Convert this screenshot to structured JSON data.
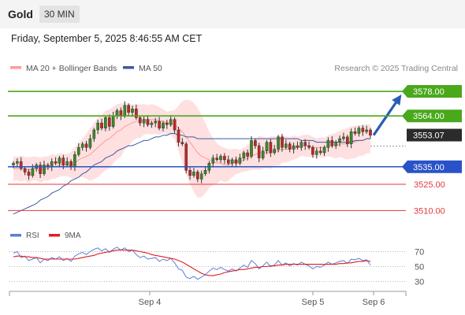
{
  "header": {
    "title": "Gold",
    "timeframe": "30 MIN"
  },
  "datetime": "Friday, September 5, 2025 8:46:55 AM CET",
  "legend": {
    "item1": "MA 20 + Bollinger Bands",
    "item2": "MA 50"
  },
  "credit": "Research © 2025 Trading Central",
  "rsi_legend": {
    "item1": "RSI",
    "item2": "9MA"
  },
  "colors": {
    "resistance": "#4aa81c",
    "support": "#2952c8",
    "weak": "#e03a3a",
    "up": "#3b8a25",
    "down": "#c02828",
    "band": "#ffd6d6",
    "ma20": "#ff9a9a",
    "ma50": "#3c5aa6",
    "arrow": "#2a5bb5",
    "rsi": "#5b7fd6",
    "rsi_ma": "#e02020"
  },
  "chart_data": [
    {
      "type": "candlestick",
      "title": "Gold",
      "xlabel": "",
      "ylabel": "",
      "ylim": [
        3503,
        3587
      ],
      "x_ticks": [
        "Sep 4",
        "Sep 5",
        "Sep 6"
      ],
      "levels": [
        {
          "value": 3578.0,
          "label": "3578.00",
          "kind": "resistance"
        },
        {
          "value": 3564.0,
          "label": "3564.00",
          "kind": "resistance"
        },
        {
          "value": 3553.07,
          "label": "3553.07",
          "kind": "last"
        },
        {
          "value": 3535.0,
          "label": "3535.00",
          "kind": "support"
        },
        {
          "value": 3525.0,
          "label": "3525.00",
          "kind": "weak"
        },
        {
          "value": 3510.0,
          "label": "3510.00",
          "kind": "weak"
        }
      ],
      "forecast": {
        "from": 3553,
        "to": 3574
      },
      "series": [
        {
          "name": "Price",
          "close": [
            3537,
            3538,
            3534,
            3532,
            3530,
            3534,
            3536,
            3531,
            3536,
            3535,
            3538,
            3537,
            3540,
            3536,
            3538,
            3535,
            3542,
            3546,
            3548,
            3546,
            3551,
            3556,
            3560,
            3557,
            3563,
            3558,
            3564,
            3567,
            3564,
            3570,
            3566,
            3568,
            3563,
            3560,
            3562,
            3559,
            3560,
            3561,
            3557,
            3560,
            3559,
            3562,
            3556,
            3549,
            3548,
            3533,
            3530,
            3532,
            3528,
            3531,
            3533,
            3537,
            3540,
            3539,
            3541,
            3539,
            3537,
            3539,
            3537,
            3540,
            3543,
            3541,
            3550,
            3547,
            3540,
            3544,
            3549,
            3543,
            3545,
            3552,
            3546,
            3548,
            3545,
            3547,
            3546,
            3549,
            3547,
            3546,
            3542,
            3544,
            3543,
            3546,
            3550,
            3547,
            3549,
            3551,
            3552,
            3548,
            3555,
            3554,
            3557,
            3555,
            3556,
            3553
          ]
        },
        {
          "name": "MA 20",
          "values": [
            3534,
            3534,
            3534,
            3534,
            3533,
            3534,
            3534,
            3533,
            3534,
            3534,
            3535,
            3535,
            3536,
            3536,
            3536,
            3536,
            3537,
            3539,
            3540,
            3541,
            3542,
            3544,
            3546,
            3548,
            3550,
            3551,
            3553,
            3555,
            3556,
            3558,
            3559,
            3560,
            3561,
            3561,
            3562,
            3562,
            3562,
            3562,
            3561,
            3561,
            3560,
            3560,
            3559,
            3557,
            3555,
            3552,
            3549,
            3546,
            3543,
            3541,
            3540,
            3539,
            3538,
            3537,
            3537,
            3536,
            3536,
            3537,
            3538,
            3538,
            3539,
            3540,
            3541,
            3542,
            3543,
            3543,
            3543,
            3543,
            3544,
            3544,
            3545,
            3545,
            3545,
            3546,
            3546,
            3547,
            3547,
            3547,
            3546,
            3546,
            3546,
            3546,
            3547,
            3547,
            3547,
            3548,
            3548,
            3548,
            3549,
            3549,
            3550,
            3550,
            3551,
            3551
          ]
        },
        {
          "name": "MA 50",
          "values": [
            3508,
            3509,
            3510,
            3511,
            3512,
            3513,
            3514,
            3516,
            3517,
            3518,
            3520,
            3521,
            3522,
            3524,
            3525,
            3527,
            3528,
            3529,
            3531,
            3532,
            3534,
            3536,
            3537,
            3538,
            3540,
            3541,
            3542,
            3544,
            3545,
            3546,
            3547,
            3547,
            3548,
            3549,
            3550,
            3550,
            3551,
            3552,
            3552,
            3553,
            3553,
            3554,
            3554,
            3553,
            3553,
            3552,
            3552,
            3552,
            3551,
            3551,
            3551,
            3551,
            3551,
            3551,
            3551,
            3551,
            3551,
            3551,
            3551,
            3551,
            3551,
            3551,
            3551,
            3551,
            3551,
            3551,
            3551,
            3551,
            3551,
            3551,
            3551,
            3551,
            3551,
            3551,
            3551,
            3550,
            3550,
            3550,
            3550,
            3549,
            3549,
            3549,
            3549,
            3549,
            3549,
            3549,
            3549,
            3549,
            3549,
            3550,
            3550,
            3550,
            3551,
            3551
          ]
        }
      ]
    },
    {
      "type": "line",
      "title": "RSI",
      "ylim": [
        20,
        80
      ],
      "y_ticks": [
        "70",
        "50",
        "30"
      ],
      "series": [
        {
          "name": "RSI",
          "values": [
            68,
            70,
            62,
            64,
            58,
            60,
            62,
            55,
            60,
            58,
            62,
            60,
            63,
            58,
            61,
            57,
            64,
            67,
            69,
            66,
            70,
            73,
            75,
            71,
            74,
            69,
            73,
            76,
            72,
            75,
            70,
            72,
            66,
            62,
            64,
            60,
            61,
            62,
            57,
            60,
            58,
            61,
            55,
            47,
            45,
            36,
            34,
            37,
            33,
            36,
            39,
            44,
            48,
            46,
            49,
            46,
            44,
            47,
            44,
            48,
            52,
            49,
            58,
            54,
            47,
            51,
            56,
            50,
            52,
            58,
            52,
            55,
            51,
            54,
            52,
            56,
            53,
            51,
            47,
            50,
            49,
            52,
            56,
            53,
            55,
            57,
            58,
            54,
            60,
            59,
            61,
            58,
            59,
            52
          ]
        },
        {
          "name": "9MA",
          "values": [
            63,
            64,
            64,
            63,
            63,
            62,
            62,
            61,
            60,
            60,
            60,
            60,
            60,
            60,
            60,
            60,
            60,
            61,
            62,
            63,
            64,
            65,
            67,
            68,
            69,
            70,
            71,
            72,
            72,
            72,
            72,
            72,
            71,
            70,
            69,
            68,
            66,
            65,
            64,
            63,
            62,
            61,
            60,
            58,
            56,
            53,
            50,
            47,
            44,
            41,
            39,
            38,
            38,
            39,
            40,
            42,
            43,
            44,
            45,
            46,
            46,
            47,
            48,
            49,
            49,
            50,
            50,
            51,
            51,
            52,
            52,
            53,
            53,
            53,
            53,
            53,
            53,
            53,
            53,
            53,
            53,
            53,
            53,
            53,
            53,
            54,
            54,
            55,
            55,
            56,
            57,
            57,
            58,
            57
          ]
        }
      ]
    }
  ]
}
